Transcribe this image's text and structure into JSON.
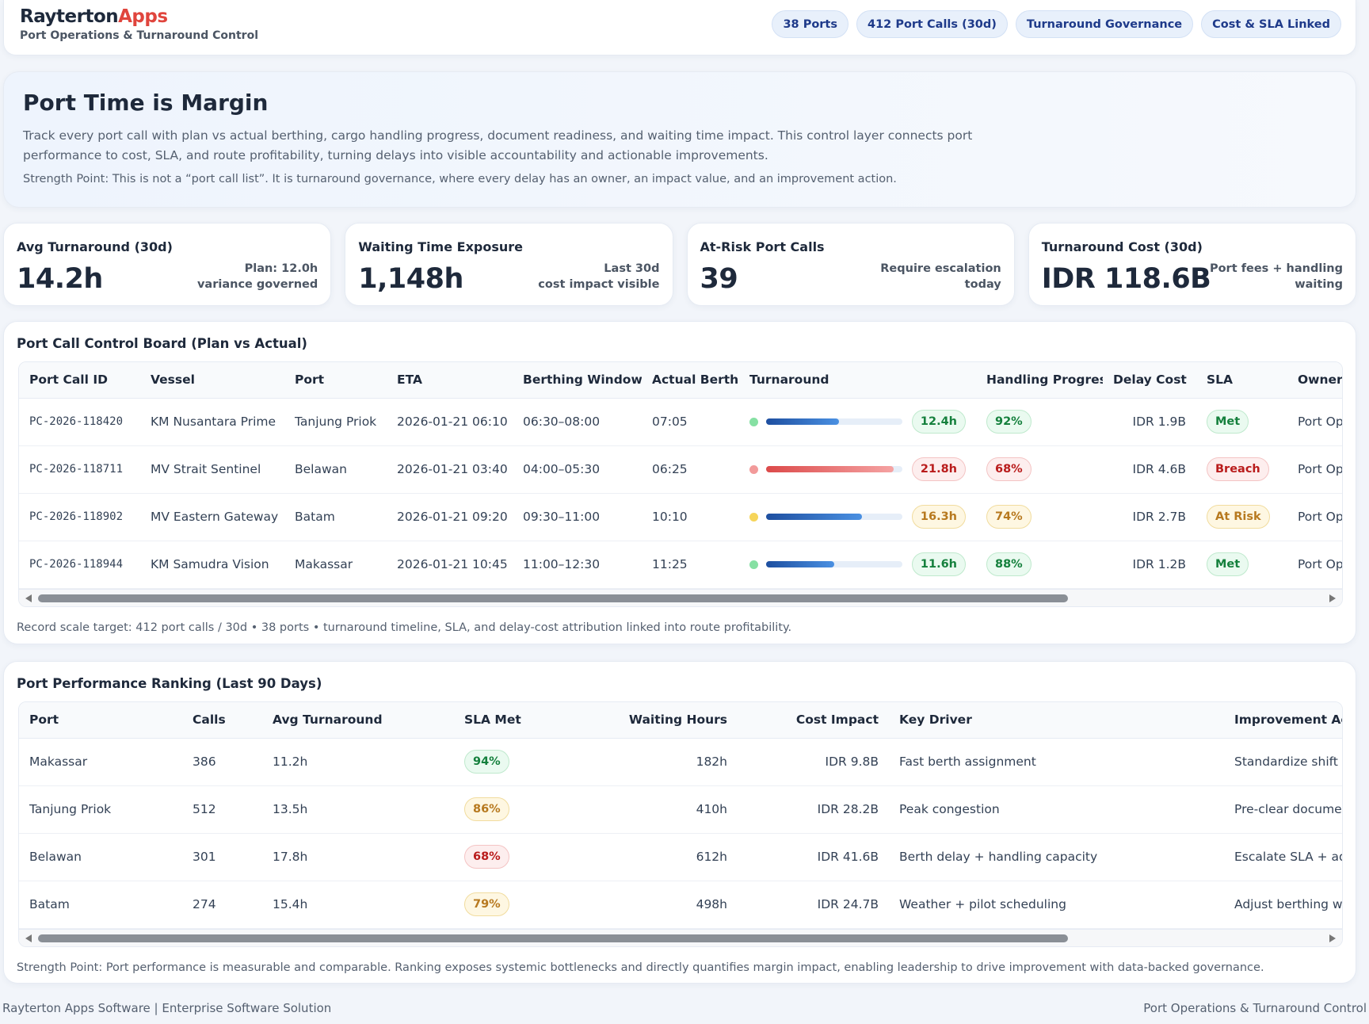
{
  "header": {
    "brand_main": "Rayterton",
    "brand_accent": "Apps",
    "subtitle": "Port Operations & Turnaround Control",
    "badges": [
      "38 Ports",
      "412 Port Calls (30d)",
      "Turnaround Governance",
      "Cost & SLA Linked"
    ]
  },
  "hero": {
    "title": "Port Time is Margin",
    "description": "Track every port call with plan vs actual berthing, cargo handling progress, document readiness, and waiting time impact. This control layer connects port performance to cost, SLA, and route profitability, turning delays into visible accountability and actionable improvements.",
    "strength": "Strength Point: This is not a “port call list”. It is turnaround governance, where every delay has an owner, an impact value, and an improvement action."
  },
  "kpis": [
    {
      "label": "Avg Turnaround (30d)",
      "value": "14.2h",
      "note": [
        "Plan: 12.0h",
        "variance governed"
      ]
    },
    {
      "label": "Waiting Time Exposure",
      "value": "1,148h",
      "note": [
        "Last 30d",
        "cost impact visible"
      ]
    },
    {
      "label": "At-Risk Port Calls",
      "value": "39",
      "note": [
        "Require escalation",
        "today"
      ]
    },
    {
      "label": "Turnaround Cost (30d)",
      "value": "IDR 118.6B",
      "note": [
        "Port fees + handling",
        "waiting"
      ]
    }
  ],
  "board": {
    "title": "Port Call Control Board (Plan vs Actual)",
    "columns": [
      "Port Call ID",
      "Vessel",
      "Port",
      "ETA",
      "Berthing Window",
      "Actual Berth",
      "Turnaround",
      "Handling Progress",
      "Delay Cost",
      "SLA",
      "Owner"
    ],
    "rows": [
      {
        "id": "PC-2026-118420",
        "vessel": "KM Nusantara Prime",
        "port": "Tanjung Priok",
        "eta": "2026-01-21 06:10",
        "window": "06:30–08:00",
        "actual": "07:05",
        "tone": "green",
        "turnaround": {
          "value": 12.4,
          "label": "12.4h"
        },
        "handling": "92%",
        "delay_cost": "IDR 1.9B",
        "sla": "Met",
        "sla_tone": "green",
        "owner": "Port Ops"
      },
      {
        "id": "PC-2026-118711",
        "vessel": "MV Strait Sentinel",
        "port": "Belawan",
        "eta": "2026-01-21 03:40",
        "window": "04:00–05:30",
        "actual": "06:25",
        "tone": "red",
        "turnaround": {
          "value": 21.8,
          "label": "21.8h"
        },
        "handling": "68%",
        "delay_cost": "IDR 4.6B",
        "sla": "Breach",
        "sla_tone": "red",
        "owner": "Port Ops"
      },
      {
        "id": "PC-2026-118902",
        "vessel": "MV Eastern Gateway",
        "port": "Batam",
        "eta": "2026-01-21 09:20",
        "window": "09:30–11:00",
        "actual": "10:10",
        "tone": "amber",
        "turnaround": {
          "value": 16.3,
          "label": "16.3h"
        },
        "handling": "74%",
        "delay_cost": "IDR 2.7B",
        "sla": "At Risk",
        "sla_tone": "amber",
        "owner": "Port Ops"
      },
      {
        "id": "PC-2026-118944",
        "vessel": "KM Samudra Vision",
        "port": "Makassar",
        "eta": "2026-01-21 10:45",
        "window": "11:00–12:30",
        "actual": "11:25",
        "tone": "green",
        "turnaround": {
          "value": 11.6,
          "label": "11.6h"
        },
        "handling": "88%",
        "delay_cost": "IDR 1.2B",
        "sla": "Met",
        "sla_tone": "green",
        "owner": "Port Ops"
      }
    ],
    "footnote": "Record scale target: 412 port calls / 30d • 38 ports • turnaround timeline, SLA, and delay-cost attribution linked into route profitability."
  },
  "ranking": {
    "title": "Port Performance Ranking (Last 90 Days)",
    "columns": [
      "Port",
      "Calls",
      "Avg Turnaround",
      "SLA Met",
      "Waiting Hours",
      "Cost Impact",
      "Key Driver",
      "Improvement Act"
    ],
    "rows": [
      {
        "port": "Makassar",
        "calls": 386,
        "avg": "11.2h",
        "sla": "94%",
        "sla_tone": "green",
        "waiting": "182h",
        "cost": "IDR 9.8B",
        "driver": "Fast berth assignment",
        "action": "Standardize shift h"
      },
      {
        "port": "Tanjung Priok",
        "calls": 512,
        "avg": "13.5h",
        "sla": "86%",
        "sla_tone": "amber",
        "waiting": "410h",
        "cost": "IDR 28.2B",
        "driver": "Peak congestion",
        "action": "Pre-clear documen"
      },
      {
        "port": "Belawan",
        "calls": 301,
        "avg": "17.8h",
        "sla": "68%",
        "sla_tone": "red",
        "waiting": "612h",
        "cost": "IDR 41.6B",
        "driver": "Berth delay + handling capacity",
        "action": "Escalate SLA + ad"
      },
      {
        "port": "Batam",
        "calls": 274,
        "avg": "15.4h",
        "sla": "79%",
        "sla_tone": "amber",
        "waiting": "498h",
        "cost": "IDR 24.7B",
        "driver": "Weather + pilot scheduling",
        "action": "Adjust berthing w"
      }
    ],
    "footnote": "Strength Point: Port performance is measurable and comparable. Ranking exposes systemic bottlenecks and directly quantifies margin impact, enabling leadership to drive improvement with data-backed governance."
  },
  "footer": {
    "left": "Rayterton Apps Software | Enterprise Software Solution",
    "right": "Port Operations & Turnaround Control"
  }
}
